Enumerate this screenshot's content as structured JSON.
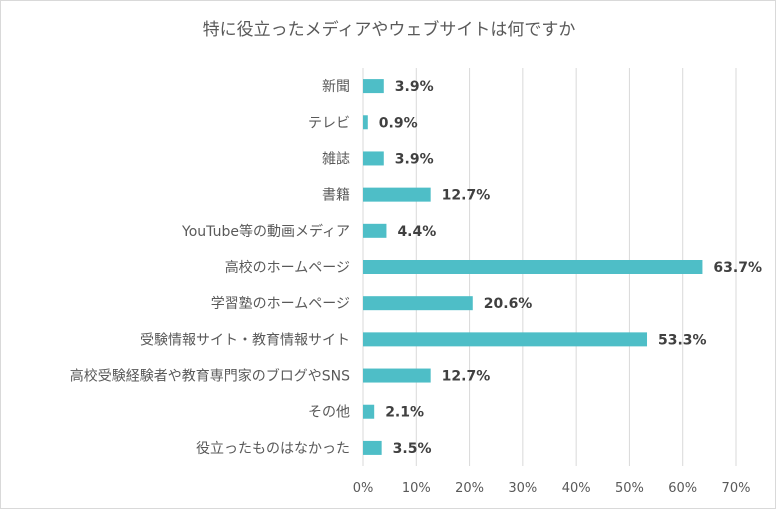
{
  "chart_data": {
    "type": "bar",
    "orientation": "horizontal",
    "title": "特に役立ったメディアやウェブサイトは何ですか",
    "categories": [
      "新聞",
      "テレビ",
      "雑誌",
      "書籍",
      "YouTube等の動画メディア",
      "高校のホームページ",
      "学習塾のホームページ",
      "受験情報サイト・教育情報サイト",
      "高校受験経験者や教育専門家のブログやSNS",
      "その他",
      "役立ったものはなかった"
    ],
    "values": [
      3.9,
      0.9,
      3.9,
      12.7,
      4.4,
      63.7,
      20.6,
      53.3,
      12.7,
      2.1,
      3.5
    ],
    "data_labels": [
      "3.9%",
      "0.9%",
      "3.9%",
      "12.7%",
      "4.4%",
      "63.7%",
      "20.6%",
      "53.3%",
      "12.7%",
      "2.1%",
      "3.5%"
    ],
    "xlim": [
      0,
      70
    ],
    "x_ticks": [
      "0%",
      "10%",
      "20%",
      "30%",
      "40%",
      "50%",
      "60%",
      "70%"
    ],
    "grid": true,
    "colors": {
      "bar": "#4ebec7",
      "grid": "#d9d9d9",
      "text": "#595959",
      "label": "#404040"
    }
  }
}
